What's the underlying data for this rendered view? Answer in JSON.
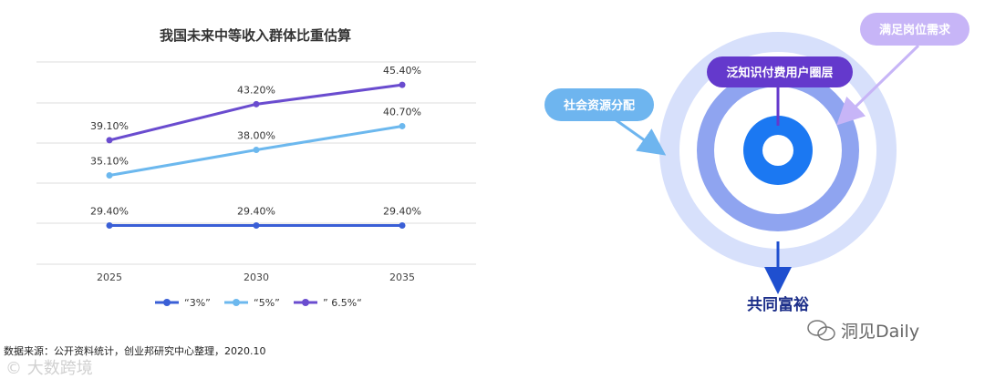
{
  "chart_data": {
    "type": "line",
    "title": "我国未来中等收入群体比重估算",
    "categories": [
      "2025",
      "2030",
      "2035"
    ],
    "series": [
      {
        "name": "“3%”",
        "values": [
          29.4,
          29.4,
          29.4
        ],
        "labels": [
          "29.40%",
          "29.40%",
          "29.40%"
        ],
        "color": "#3a5fd6"
      },
      {
        "name": "“5%”",
        "values": [
          35.1,
          38.0,
          40.7
        ],
        "labels": [
          "35.10%",
          "38.00%",
          "40.70%"
        ],
        "color": "#6cb8ee"
      },
      {
        "name": "” 6.5%“",
        "values": [
          39.1,
          43.2,
          45.4
        ],
        "labels": [
          "39.10%",
          "43.20%",
          "45.40%"
        ],
        "color": "#6a4ccf"
      }
    ],
    "ylim": [
      25,
      48
    ],
    "grid": true,
    "legend": "bottom"
  },
  "source": "数据来源：公开资料统计，创业邦研究中心整理，2020.10",
  "watermark_left": "© 大数跨境",
  "diagram": {
    "labels": {
      "resources": "社会资源分配",
      "users": "泛知识付费用户圈层",
      "jobs": "满足岗位需求",
      "goal": "共同富裕"
    },
    "colors": {
      "outer": "#d7e0fb",
      "ring": "#8fa4f0",
      "inner": "#1b78f2",
      "pill_left": "#6eb5ef",
      "pill_center": "#6439cc",
      "pill_right": "#c7b5f7",
      "arrow_dark": "#1f4fcf"
    }
  },
  "watermark_brand": "洞见Daily"
}
